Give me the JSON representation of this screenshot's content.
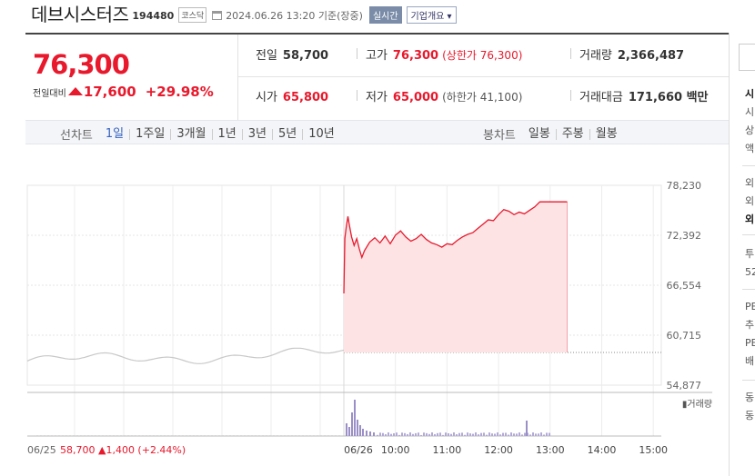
{
  "header": {
    "name": "데브시스터즈",
    "code": "194480",
    "market": "코스닥",
    "datetime": "2024.06.26 13:20 기준(장중)",
    "realtime_label": "실시간",
    "company_label": "기업개요 ▾"
  },
  "price": {
    "current": "76,300",
    "diff_label": "전일대비",
    "diff": "17,600",
    "rate": "+29.98%"
  },
  "stats": {
    "prev_label": "전일",
    "prev": "58,700",
    "high_label": "고가",
    "high": "76,300",
    "high_limit": "(상한가 76,300)",
    "volume_label": "거래량",
    "volume": "2,366,487",
    "open_label": "시가",
    "open": "65,800",
    "low_label": "저가",
    "low": "65,000",
    "low_limit": "(하한가 41,100)",
    "amount_label": "거래대금",
    "amount": "171,660 백만"
  },
  "line_tabs": {
    "label": "선차트",
    "items": [
      "1일",
      "1주일",
      "3개월",
      "1년",
      "3년",
      "5년",
      "10년"
    ],
    "active": "1일"
  },
  "candle_tabs": {
    "label": "봉차트",
    "items": [
      "일봉",
      "주봉",
      "월봉"
    ]
  },
  "chart_data": {
    "type": "line",
    "y_ticks": [
      "78,230",
      "72,392",
      "66,554",
      "60,715",
      "54,877"
    ],
    "ylim": [
      54877,
      78230
    ],
    "x_ticks": [
      "06/26",
      "10:00",
      "11:00",
      "12:00",
      "13:00",
      "14:00",
      "15:00"
    ],
    "prev_day": {
      "label": "06/25",
      "close": "58,700",
      "change": "▲1,400",
      "rate": "(+2.44%)"
    },
    "volume_label": "▮거래량",
    "prev_close_value": 58700,
    "series": [
      {
        "values": [
          [
            9.0,
            65600
          ],
          [
            9.02,
            72000
          ],
          [
            9.05,
            73500
          ],
          [
            9.08,
            74600
          ],
          [
            9.1,
            73800
          ],
          [
            9.15,
            72200
          ],
          [
            9.2,
            71200
          ],
          [
            9.25,
            72000
          ],
          [
            9.3,
            70800
          ],
          [
            9.35,
            69800
          ],
          [
            9.4,
            70600
          ],
          [
            9.5,
            71600
          ],
          [
            9.6,
            72100
          ],
          [
            9.7,
            71500
          ],
          [
            9.8,
            72300
          ],
          [
            9.9,
            71400
          ],
          [
            10.0,
            72400
          ],
          [
            10.1,
            72900
          ],
          [
            10.2,
            72200
          ],
          [
            10.3,
            71700
          ],
          [
            10.4,
            72000
          ],
          [
            10.5,
            72500
          ],
          [
            10.6,
            71900
          ],
          [
            10.7,
            71500
          ],
          [
            10.8,
            71300
          ],
          [
            10.9,
            71000
          ],
          [
            11.0,
            71400
          ],
          [
            11.1,
            71300
          ],
          [
            11.2,
            71800
          ],
          [
            11.3,
            72200
          ],
          [
            11.4,
            72500
          ],
          [
            11.5,
            72700
          ],
          [
            11.6,
            73200
          ],
          [
            11.7,
            73700
          ],
          [
            11.8,
            74200
          ],
          [
            11.9,
            74100
          ],
          [
            12.0,
            74800
          ],
          [
            12.1,
            75400
          ],
          [
            12.2,
            75200
          ],
          [
            12.3,
            74800
          ],
          [
            12.4,
            75100
          ],
          [
            12.5,
            74900
          ],
          [
            12.6,
            75300
          ],
          [
            12.7,
            75700
          ],
          [
            12.8,
            76300
          ],
          [
            13.0,
            76300
          ],
          [
            13.33,
            76300
          ]
        ]
      }
    ]
  }
}
